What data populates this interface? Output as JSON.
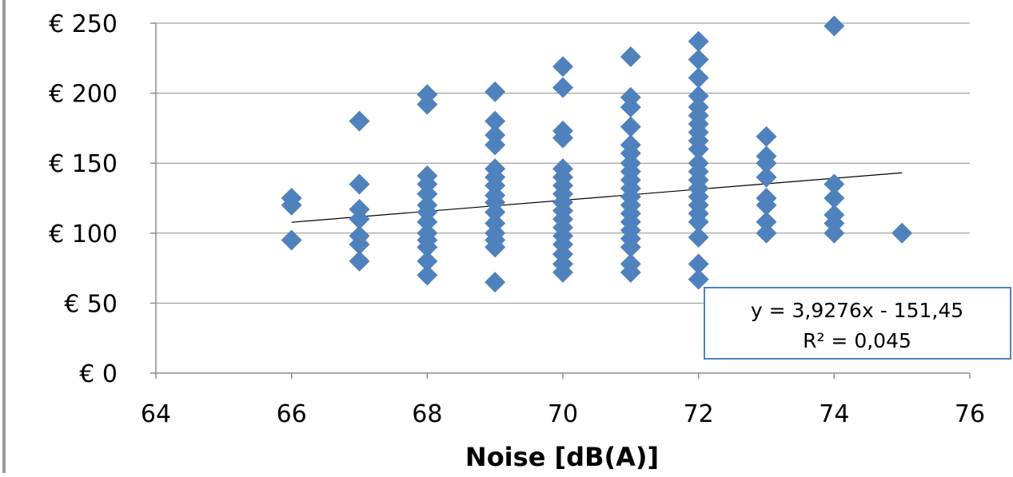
{
  "chart_data": {
    "type": "scatter",
    "title": "",
    "xlabel": "Noise [dB(A)]",
    "ylabel": "",
    "xlim": [
      64,
      76
    ],
    "ylim": [
      0,
      250
    ],
    "x_ticks": [
      64,
      66,
      68,
      70,
      72,
      74,
      76
    ],
    "y_ticks": [
      0,
      50,
      100,
      150,
      200,
      250
    ],
    "x_tick_labels": [
      "64",
      "66",
      "68",
      "70",
      "72",
      "74",
      "76"
    ],
    "y_tick_labels": [
      "€ 0",
      "€ 50",
      "€ 100",
      "€ 150",
      "€ 200",
      "€ 250"
    ],
    "grid": "horizontal",
    "marker_color": "#4F81BD",
    "trendline_color": "#000000",
    "points": [
      [
        66,
        125
      ],
      [
        66,
        120
      ],
      [
        66,
        95
      ],
      [
        67,
        180
      ],
      [
        67,
        135
      ],
      [
        67,
        117
      ],
      [
        67,
        110
      ],
      [
        67,
        98
      ],
      [
        67,
        92
      ],
      [
        67,
        80
      ],
      [
        68,
        199
      ],
      [
        68,
        192
      ],
      [
        68,
        141
      ],
      [
        68,
        135
      ],
      [
        68,
        128
      ],
      [
        68,
        120
      ],
      [
        68,
        115
      ],
      [
        68,
        108
      ],
      [
        68,
        100
      ],
      [
        68,
        95
      ],
      [
        68,
        90
      ],
      [
        68,
        80
      ],
      [
        68,
        70
      ],
      [
        69,
        201
      ],
      [
        69,
        180
      ],
      [
        69,
        170
      ],
      [
        69,
        163
      ],
      [
        69,
        146
      ],
      [
        69,
        140
      ],
      [
        69,
        134
      ],
      [
        69,
        127
      ],
      [
        69,
        122
      ],
      [
        69,
        115
      ],
      [
        69,
        107
      ],
      [
        69,
        100
      ],
      [
        69,
        95
      ],
      [
        69,
        90
      ],
      [
        69,
        65
      ],
      [
        70,
        219
      ],
      [
        70,
        204
      ],
      [
        70,
        173
      ],
      [
        70,
        168
      ],
      [
        70,
        146
      ],
      [
        70,
        140
      ],
      [
        70,
        134
      ],
      [
        70,
        128
      ],
      [
        70,
        122
      ],
      [
        70,
        116
      ],
      [
        70,
        110
      ],
      [
        70,
        104
      ],
      [
        70,
        98
      ],
      [
        70,
        92
      ],
      [
        70,
        85
      ],
      [
        70,
        78
      ],
      [
        70,
        72
      ],
      [
        71,
        226
      ],
      [
        71,
        197
      ],
      [
        71,
        190
      ],
      [
        71,
        176
      ],
      [
        71,
        163
      ],
      [
        71,
        157
      ],
      [
        71,
        150
      ],
      [
        71,
        144
      ],
      [
        71,
        138
      ],
      [
        71,
        132
      ],
      [
        71,
        126
      ],
      [
        71,
        120
      ],
      [
        71,
        114
      ],
      [
        71,
        108
      ],
      [
        71,
        102
      ],
      [
        71,
        96
      ],
      [
        71,
        90
      ],
      [
        71,
        78
      ],
      [
        71,
        72
      ],
      [
        72,
        237
      ],
      [
        72,
        224
      ],
      [
        72,
        211
      ],
      [
        72,
        198
      ],
      [
        72,
        190
      ],
      [
        72,
        184
      ],
      [
        72,
        178
      ],
      [
        72,
        172
      ],
      [
        72,
        166
      ],
      [
        72,
        160
      ],
      [
        72,
        150
      ],
      [
        72,
        144
      ],
      [
        72,
        138
      ],
      [
        72,
        132
      ],
      [
        72,
        126
      ],
      [
        72,
        120
      ],
      [
        72,
        114
      ],
      [
        72,
        108
      ],
      [
        72,
        97
      ],
      [
        72,
        78
      ],
      [
        72,
        67
      ],
      [
        73,
        169
      ],
      [
        73,
        155
      ],
      [
        73,
        150
      ],
      [
        73,
        140
      ],
      [
        73,
        125
      ],
      [
        73,
        120
      ],
      [
        73,
        108
      ],
      [
        73,
        100
      ],
      [
        74,
        248
      ],
      [
        74,
        135
      ],
      [
        74,
        125
      ],
      [
        74,
        113
      ],
      [
        74,
        107
      ],
      [
        74,
        100
      ],
      [
        75,
        100
      ]
    ],
    "trendline": {
      "equation": "y = 3,9276x - 151,45",
      "r_squared": "R² = 0,045",
      "slope": 3.9276,
      "intercept": -151.45,
      "x_start": 66,
      "x_end": 75
    }
  }
}
